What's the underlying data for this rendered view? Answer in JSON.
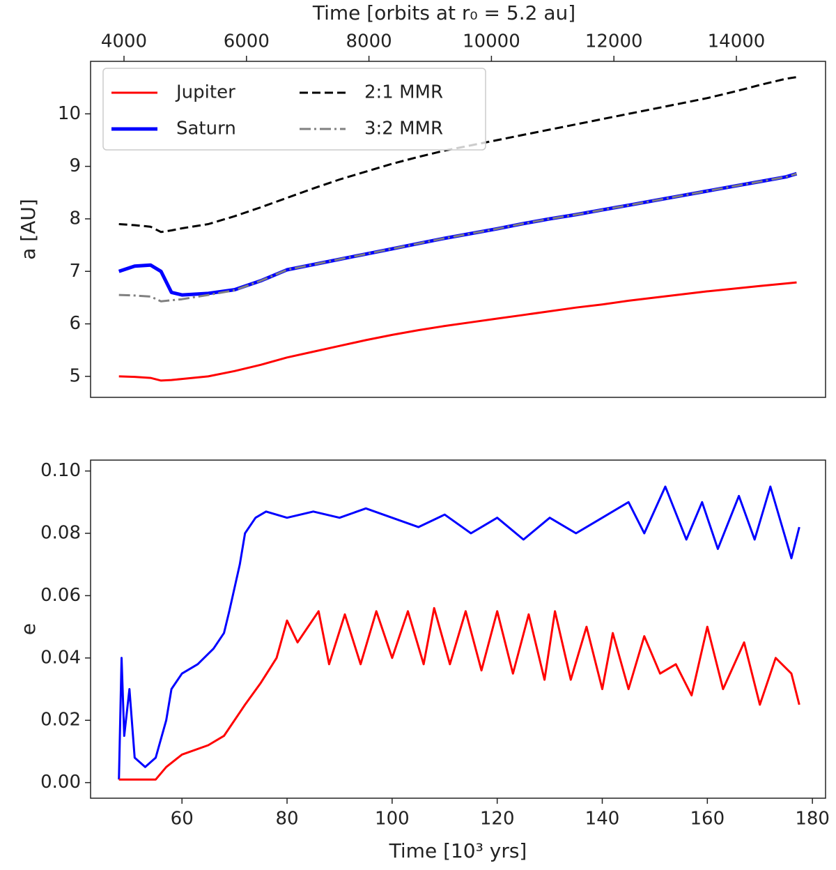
{
  "chart_data": [
    {
      "type": "line",
      "x_label": "Time [orbits at r₀ = 5.2 au]",
      "y_label": "a [AU]",
      "xlim": [
        42.6,
        182.5
      ],
      "ylim": [
        4.6,
        11.0
      ],
      "yticks": [
        5,
        6,
        7,
        8,
        9,
        10
      ],
      "x2lim": [
        3454,
        15456
      ],
      "x2ticks": [
        4000,
        6000,
        8000,
        10000,
        12000,
        14000
      ],
      "legend": "upper left",
      "x": [
        48,
        51,
        54,
        56,
        58,
        60,
        65,
        70,
        75,
        80,
        85,
        90,
        95,
        100,
        105,
        110,
        115,
        120,
        125,
        130,
        135,
        140,
        145,
        150,
        155,
        160,
        165,
        170,
        175,
        177
      ],
      "series": [
        {
          "name": "Jupiter",
          "color": "#ff0000",
          "width": 3,
          "values": [
            5.0,
            4.99,
            4.97,
            4.92,
            4.93,
            4.95,
            5.0,
            5.1,
            5.22,
            5.36,
            5.47,
            5.58,
            5.69,
            5.79,
            5.88,
            5.96,
            6.03,
            6.1,
            6.17,
            6.24,
            6.31,
            6.37,
            6.44,
            6.5,
            6.56,
            6.62,
            6.67,
            6.72,
            6.77,
            6.79
          ]
        },
        {
          "name": "Saturn",
          "color": "#0000ff",
          "width": 5,
          "values": [
            7.0,
            7.1,
            7.12,
            7.0,
            6.6,
            6.55,
            6.58,
            6.65,
            6.82,
            7.03,
            7.13,
            7.23,
            7.33,
            7.43,
            7.53,
            7.63,
            7.72,
            7.81,
            7.91,
            8.0,
            8.08,
            8.17,
            8.26,
            8.35,
            8.44,
            8.53,
            8.62,
            8.71,
            8.8,
            8.86
          ]
        },
        {
          "name": "2:1 MMR",
          "color": "#000000",
          "width": 3,
          "dash": "dashed",
          "values": [
            7.9,
            7.88,
            7.85,
            7.75,
            7.78,
            7.82,
            7.9,
            8.05,
            8.22,
            8.4,
            8.58,
            8.75,
            8.9,
            9.05,
            9.18,
            9.3,
            9.4,
            9.5,
            9.6,
            9.7,
            9.8,
            9.9,
            10.0,
            10.1,
            10.2,
            10.3,
            10.42,
            10.55,
            10.67,
            10.7
          ]
        },
        {
          "name": "3:2 MMR",
          "color": "#808080",
          "width": 3,
          "dash": "dashdot",
          "values": [
            6.55,
            6.54,
            6.52,
            6.43,
            6.45,
            6.47,
            6.55,
            6.64,
            6.82,
            7.03,
            7.13,
            7.23,
            7.33,
            7.43,
            7.53,
            7.63,
            7.72,
            7.81,
            7.91,
            8.0,
            8.08,
            8.17,
            8.26,
            8.35,
            8.44,
            8.53,
            8.62,
            8.71,
            8.8,
            8.86
          ]
        }
      ]
    },
    {
      "type": "line",
      "x_label": "Time [10³ yrs]",
      "y_label": "e",
      "xlim": [
        42.6,
        182.5
      ],
      "ylim": [
        -0.005,
        0.1035
      ],
      "xticks": [
        60,
        80,
        100,
        120,
        140,
        160,
        180
      ],
      "yticks": [
        {
          "value": 0,
          "label": "0.00"
        },
        {
          "value": 0.02,
          "label": "0.02"
        },
        {
          "value": 0.04,
          "label": "0.04"
        },
        {
          "value": 0.06,
          "label": "0.06"
        },
        {
          "value": 0.08,
          "label": "0.08"
        },
        {
          "value": 0.1,
          "label": "0.10"
        }
      ],
      "series": [
        {
          "color": "#0000ff",
          "width": 3,
          "x": [
            48,
            48.5,
            49,
            50,
            51,
            53,
            55,
            57,
            58,
            60,
            63,
            66,
            68,
            69,
            71,
            72,
            74,
            76,
            80,
            85,
            90,
            95,
            100,
            105,
            110,
            115,
            120,
            125,
            130,
            135,
            140,
            145,
            148,
            152,
            156,
            159,
            162,
            166,
            169,
            172,
            176,
            177.5
          ],
          "values": [
            0.001,
            0.04,
            0.015,
            0.03,
            0.008,
            0.005,
            0.008,
            0.02,
            0.03,
            0.035,
            0.038,
            0.043,
            0.048,
            0.055,
            0.07,
            0.08,
            0.085,
            0.087,
            0.085,
            0.087,
            0.085,
            0.088,
            0.085,
            0.082,
            0.086,
            0.08,
            0.085,
            0.078,
            0.085,
            0.08,
            0.085,
            0.09,
            0.08,
            0.095,
            0.078,
            0.09,
            0.075,
            0.092,
            0.078,
            0.095,
            0.072,
            0.082
          ]
        },
        {
          "color": "#ff0000",
          "width": 3,
          "x": [
            48,
            52,
            55,
            57,
            60,
            65,
            68,
            72,
            75,
            78,
            80,
            82,
            86,
            88,
            91,
            94,
            97,
            100,
            103,
            106,
            108,
            111,
            114,
            117,
            120,
            123,
            126,
            129,
            131,
            134,
            137,
            140,
            142,
            145,
            148,
            151,
            154,
            157,
            160,
            163,
            167,
            170,
            173,
            176,
            177.5
          ],
          "values": [
            0.001,
            0.001,
            0.001,
            0.005,
            0.009,
            0.012,
            0.015,
            0.025,
            0.032,
            0.04,
            0.052,
            0.045,
            0.055,
            0.038,
            0.054,
            0.038,
            0.055,
            0.04,
            0.055,
            0.038,
            0.056,
            0.038,
            0.055,
            0.036,
            0.055,
            0.035,
            0.054,
            0.033,
            0.055,
            0.033,
            0.05,
            0.03,
            0.048,
            0.03,
            0.047,
            0.035,
            0.038,
            0.028,
            0.05,
            0.03,
            0.045,
            0.025,
            0.04,
            0.035,
            0.025
          ]
        }
      ]
    }
  ]
}
